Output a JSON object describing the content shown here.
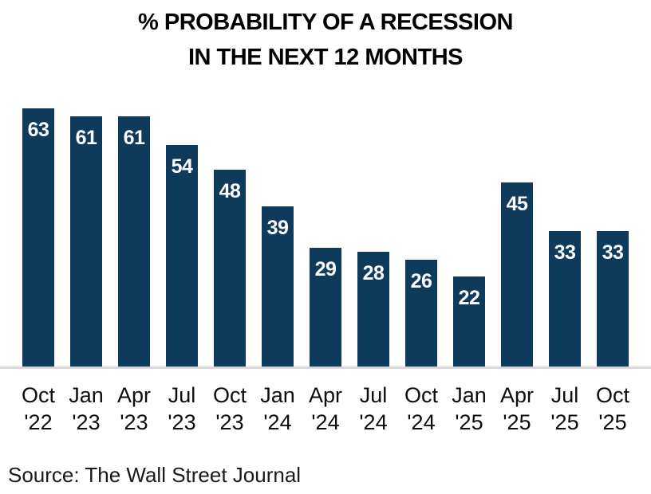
{
  "title": {
    "line1": "% PROBABILITY OF A RECESSION",
    "line2": "IN THE NEXT 12 MONTHS"
  },
  "source": "Source: The Wall Street Journal",
  "colors": {
    "bar": "#0e3a5c",
    "value_label": "#ffffff",
    "baseline": "#d9d9d9",
    "text": "#000000"
  },
  "chart_data": {
    "type": "bar",
    "title": "% PROBABILITY OF A RECESSION IN THE NEXT 12 MONTHS",
    "categories": [
      "Oct '22",
      "Jan '23",
      "Apr '23",
      "Jul '23",
      "Oct '23",
      "Jan '24",
      "Apr '24",
      "Jul '24",
      "Oct '24",
      "Jan '25",
      "Apr '25",
      "Jul '25",
      "Oct '25"
    ],
    "values": [
      63,
      61,
      61,
      54,
      48,
      39,
      29,
      28,
      26,
      22,
      45,
      33,
      33
    ],
    "xlabel": "",
    "ylabel": "",
    "ylim": [
      0,
      63
    ],
    "grid": false,
    "legend": "none",
    "value_labels": "inside-top",
    "source": "Source: The Wall Street Journal"
  }
}
